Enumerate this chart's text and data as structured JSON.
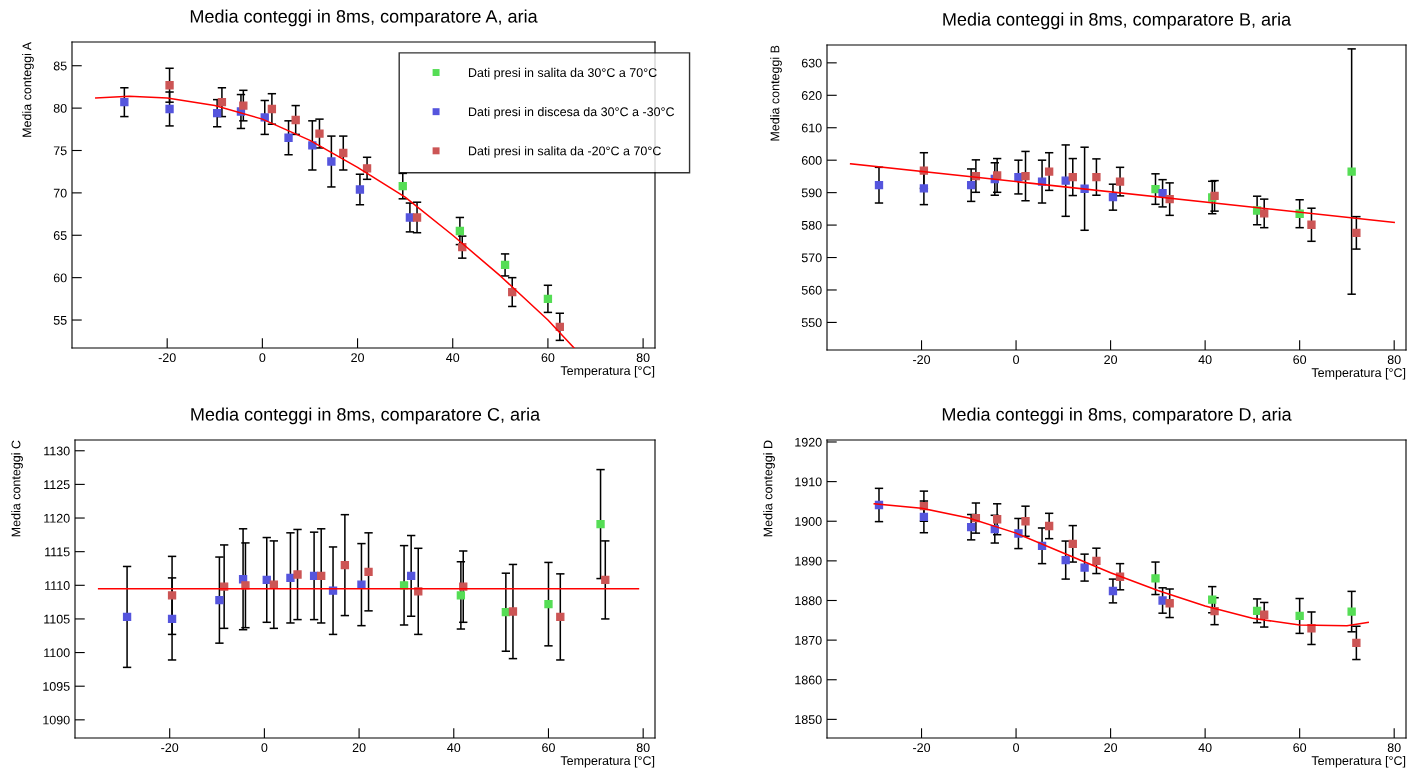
{
  "chart_data": [
    {
      "type": "scatter",
      "title": "Media conteggi in 8ms, comparatore A, aria",
      "xlabel": "Temperatura [°C]",
      "ylabel": "Media conteggi A",
      "xlim": [
        -40,
        82.5
      ],
      "xticks": [
        -20,
        0,
        20,
        40,
        60,
        80
      ],
      "ylim": [
        51.7,
        87.8
      ],
      "yticks": [
        55,
        60,
        65,
        70,
        75,
        80,
        85
      ],
      "grid": false,
      "legend": "top right",
      "marker": "square",
      "series": [
        {
          "name": "Dati presi in salita da 30°C a 70°C",
          "color": "#55dd55",
          "x": [
            29.5,
            41.5,
            51,
            60
          ],
          "values": [
            70.8,
            65.5,
            61.5,
            57.5
          ],
          "errors": [
            1.5,
            1.6,
            1.3,
            1.6
          ]
        },
        {
          "name": "Dati presi in discesa da 30°C a -30°C",
          "color": "#5555dd",
          "x": [
            -29,
            -19.5,
            -9.5,
            -4.5,
            0.5,
            5.5,
            10.5,
            14.5,
            20.5,
            31
          ],
          "values": [
            80.7,
            79.9,
            79.4,
            79.6,
            78.9,
            76.5,
            75.6,
            73.7,
            70.4,
            67.1
          ],
          "errors": [
            1.7,
            2,
            1.6,
            2,
            2,
            2,
            2.9,
            3,
            1.8,
            1.7
          ]
        },
        {
          "name": "Dati presi in salita da -20°C a 70°C",
          "color": "#cc5555",
          "x": [
            -19.5,
            -8.5,
            -4,
            2,
            7,
            12,
            17,
            22,
            32.5,
            42,
            52.5,
            62.5
          ],
          "values": [
            82.7,
            80.7,
            80.3,
            79.9,
            78.6,
            77.0,
            74.7,
            72.9,
            67.1,
            63.6,
            58.3,
            54.2
          ],
          "errors": [
            2,
            1.7,
            1.8,
            1.8,
            1.7,
            1.7,
            2,
            1.3,
            1.8,
            1.3,
            1.7,
            1.6
          ]
        },
        {
          "type": "line",
          "color": "#ff0000",
          "marker": "none",
          "x": [
            -35,
            -28,
            -20,
            -10,
            0,
            10,
            20,
            30,
            40,
            50,
            60,
            65.5
          ],
          "values": [
            81.2,
            81.4,
            81.2,
            80.3,
            78.7,
            76.2,
            73.0,
            69.5,
            65.0,
            60.2,
            55.0,
            51.7
          ]
        }
      ]
    },
    {
      "type": "scatter",
      "title": "Media conteggi in 8ms, comparatore B, aria",
      "xlabel": "Temperatura [°C]",
      "ylabel": "Media conteggi B",
      "xlim": [
        -40,
        82.5
      ],
      "xticks": [
        -20,
        0,
        20,
        40,
        60,
        80
      ],
      "ylim": [
        541.5,
        635.5
      ],
      "yticks": [
        550,
        560,
        570,
        580,
        590,
        600,
        610,
        620,
        630
      ],
      "grid": false,
      "marker": "square",
      "series": [
        {
          "color": "#55dd55",
          "x": [
            29.5,
            41.5,
            51,
            60,
            71
          ],
          "values": [
            591.1,
            588.5,
            584.5,
            583.5,
            596.5
          ],
          "errors": [
            4.7,
            5,
            4.4,
            4.3,
            37.8
          ]
        },
        {
          "color": "#5555dd",
          "x": [
            -29,
            -19.5,
            -9.5,
            -4.5,
            0.5,
            5.5,
            10.5,
            14.5,
            20.5,
            31
          ],
          "values": [
            592.3,
            591.3,
            592.3,
            594.2,
            594.8,
            593.4,
            593.7,
            591.2,
            588.6,
            589.8
          ],
          "errors": [
            5.5,
            5,
            5,
            5,
            5.2,
            6.6,
            11,
            12.8,
            4,
            4.2
          ]
        },
        {
          "color": "#cc5555",
          "x": [
            -19.5,
            -8.5,
            -4,
            2,
            7,
            12,
            17,
            22,
            32.5,
            42,
            52.5,
            62.5,
            72
          ],
          "values": [
            596.8,
            595.1,
            595.3,
            595.1,
            596.5,
            594.8,
            594.8,
            593.4,
            588.0,
            589.0,
            583.6,
            580.1,
            577.6
          ],
          "errors": [
            5.5,
            5,
            5.2,
            7.6,
            5.8,
            5.7,
            5.6,
            4.4,
            5,
            4.7,
            4.4,
            5.1,
            5
          ]
        },
        {
          "type": "line",
          "color": "#ff0000",
          "marker": "none",
          "x": [
            -35,
            80
          ],
          "values": [
            598.9,
            580.8
          ]
        }
      ]
    },
    {
      "type": "scatter",
      "title": "Media conteggi in 8ms, comparatore C, aria",
      "xlabel": "Temperatura [°C]",
      "ylabel": "Media conteggi C",
      "xlim": [
        -40,
        82.5
      ],
      "xticks": [
        -20,
        0,
        20,
        40,
        60,
        80
      ],
      "ylim": [
        1087.3,
        1131.6
      ],
      "yticks": [
        1090,
        1095,
        1100,
        1105,
        1110,
        1115,
        1120,
        1125,
        1130
      ],
      "grid": false,
      "marker": "square",
      "series": [
        {
          "color": "#55dd55",
          "x": [
            29.5,
            41.5,
            51,
            60,
            71
          ],
          "values": [
            1110.0,
            1108.5,
            1106.0,
            1107.2,
            1119.1
          ],
          "errors": [
            5.9,
            5,
            5.8,
            6.2,
            8.1
          ]
        },
        {
          "color": "#5555dd",
          "x": [
            -29,
            -19.5,
            -9.5,
            -4.5,
            0.5,
            5.5,
            10.5,
            14.5,
            20.5,
            31
          ],
          "values": [
            1105.3,
            1105.0,
            1107.8,
            1110.9,
            1110.8,
            1111.1,
            1111.4,
            1109.2,
            1110.1,
            1111.4
          ],
          "errors": [
            7.5,
            6.1,
            6.4,
            7.5,
            6.3,
            6.7,
            6.5,
            6.5,
            6.1,
            6
          ]
        },
        {
          "color": "#cc5555",
          "x": [
            -19.5,
            -8.5,
            -4,
            2,
            7,
            12,
            17,
            22,
            32.5,
            42,
            52.5,
            62.5,
            72
          ],
          "values": [
            1108.5,
            1109.8,
            1110.0,
            1110.1,
            1111.6,
            1111.4,
            1113.0,
            1112.0,
            1109.1,
            1109.8,
            1106.1,
            1105.3,
            1110.8
          ],
          "errors": [
            5.8,
            6.2,
            6.3,
            6.5,
            6.7,
            7,
            7.5,
            5.8,
            6.4,
            5.3,
            7,
            6.4,
            5.8
          ]
        },
        {
          "type": "line",
          "color": "#ff0000",
          "marker": "none",
          "x": [
            -35,
            79
          ],
          "values": [
            1109.5,
            1109.5
          ]
        }
      ]
    },
    {
      "type": "scatter",
      "title": "Media conteggi in 8ms, comparatore D, aria",
      "xlabel": "Temperatura [°C]",
      "ylabel": "Media conteggi D",
      "xlim": [
        -40,
        82.5
      ],
      "xticks": [
        -20,
        0,
        20,
        40,
        60,
        80
      ],
      "ylim": [
        1845.3,
        1920.5
      ],
      "yticks": [
        1850,
        1860,
        1870,
        1880,
        1890,
        1900,
        1910,
        1920
      ],
      "grid": false,
      "marker": "square",
      "series": [
        {
          "color": "#55dd55",
          "x": [
            29.5,
            41.5,
            51,
            60,
            71
          ],
          "values": [
            1885.6,
            1880.2,
            1877.4,
            1876.1,
            1877.2
          ],
          "errors": [
            4.1,
            3.3,
            3,
            4.4,
            5.1
          ]
        },
        {
          "color": "#5555dd",
          "x": [
            -29,
            -19.5,
            -9.5,
            -4.5,
            0.5,
            5.5,
            10.5,
            14.5,
            20.5,
            31
          ],
          "values": [
            1904.1,
            1901.1,
            1898.5,
            1898.0,
            1896.9,
            1893.8,
            1890.2,
            1888.3,
            1882.4,
            1880.0
          ],
          "errors": [
            4.2,
            4,
            3.2,
            3.5,
            3.8,
            4.5,
            4.8,
            3.4,
            3,
            3.2
          ]
        },
        {
          "color": "#cc5555",
          "x": [
            -19.5,
            -8.5,
            -4,
            2,
            7,
            12,
            17,
            22,
            32.5,
            42,
            52.5,
            62.5,
            72
          ],
          "values": [
            1903.8,
            1900.8,
            1900.5,
            1900.0,
            1898.8,
            1894.3,
            1890.0,
            1886.0,
            1879.3,
            1877.3,
            1876.4,
            1873.0,
            1869.3
          ],
          "errors": [
            3.8,
            3.8,
            3.9,
            3.8,
            3.2,
            4.6,
            3.2,
            3.3,
            3.6,
            3.4,
            3.1,
            4.1,
            4.2
          ]
        },
        {
          "type": "line",
          "color": "#ff0000",
          "marker": "none",
          "x": [
            -30,
            -20,
            -10,
            0,
            10,
            20,
            30,
            40,
            50,
            60,
            70,
            74.5
          ],
          "values": [
            1904.4,
            1903.3,
            1900.8,
            1897.0,
            1892.0,
            1887.0,
            1882.5,
            1878.6,
            1875.5,
            1873.8,
            1873.6,
            1874.5
          ]
        }
      ]
    }
  ]
}
